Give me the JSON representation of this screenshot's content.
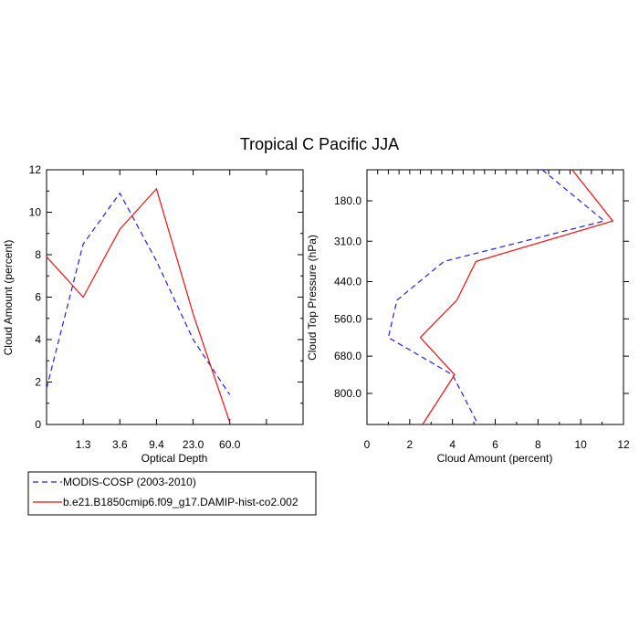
{
  "title": "Tropical C Pacific JJA",
  "colors": {
    "obs": "#2222dd",
    "model": "#ee1111",
    "axis": "#000000"
  },
  "legend": {
    "entries": [
      {
        "label": "MODIS-COSP (2003-2010)",
        "style": "dashed",
        "color": "#2222dd"
      },
      {
        "label": "b.e21.B1850cmip6.f09_g17.DAMIP-hist-co2.002",
        "style": "solid",
        "color": "#ee1111"
      }
    ]
  },
  "chart_data": [
    {
      "type": "line",
      "name": "left-panel",
      "xlabel": "Optical Depth",
      "ylabel": "Cloud Amount (percent)",
      "x_bins": 7,
      "x_tick_labels": [
        "1.3",
        "3.6",
        "9.4",
        "23.0",
        "60.0"
      ],
      "ylim": [
        0,
        12
      ],
      "y_ticks": [
        0,
        2,
        4,
        6,
        8,
        10,
        12
      ],
      "series": [
        {
          "name": "MODIS-COSP (2003-2010)",
          "style": "dashed",
          "values": [
            1.7,
            8.5,
            10.9,
            7.7,
            4.0,
            1.4
          ]
        },
        {
          "name": "b.e21.B1850cmip6.f09_g17.DAMIP-hist-co2.002",
          "style": "solid",
          "values": [
            7.9,
            6.0,
            9.2,
            11.1,
            5.2,
            0.1
          ]
        }
      ]
    },
    {
      "type": "line",
      "name": "right-panel",
      "xlabel": "Cloud Amount (percent)",
      "ylabel": "Cloud Top Pressure (hPa)",
      "xlim": [
        0,
        12
      ],
      "x_ticks": [
        0,
        2,
        4,
        6,
        8,
        10,
        12
      ],
      "pressure_range": [
        80,
        900
      ],
      "y_ticks": [
        180.0,
        310.0,
        440.0,
        560.0,
        680.0,
        800.0
      ],
      "y_tick_labels": [
        "180.0",
        "310.0",
        "440.0",
        "560.0",
        "680.0",
        "800.0"
      ],
      "levels": [
        80,
        245,
        375,
        500,
        620,
        740,
        900
      ],
      "series": [
        {
          "name": "MODIS-COSP (2003-2010)",
          "style": "dashed",
          "values": [
            8.2,
            11.1,
            3.6,
            1.4,
            1.0,
            4.0,
            5.2
          ]
        },
        {
          "name": "b.e21.B1850cmip6.f09_g17.DAMIP-hist-co2.002",
          "style": "solid",
          "values": [
            9.6,
            11.5,
            5.1,
            4.2,
            2.5,
            4.1,
            2.6
          ]
        }
      ]
    }
  ]
}
